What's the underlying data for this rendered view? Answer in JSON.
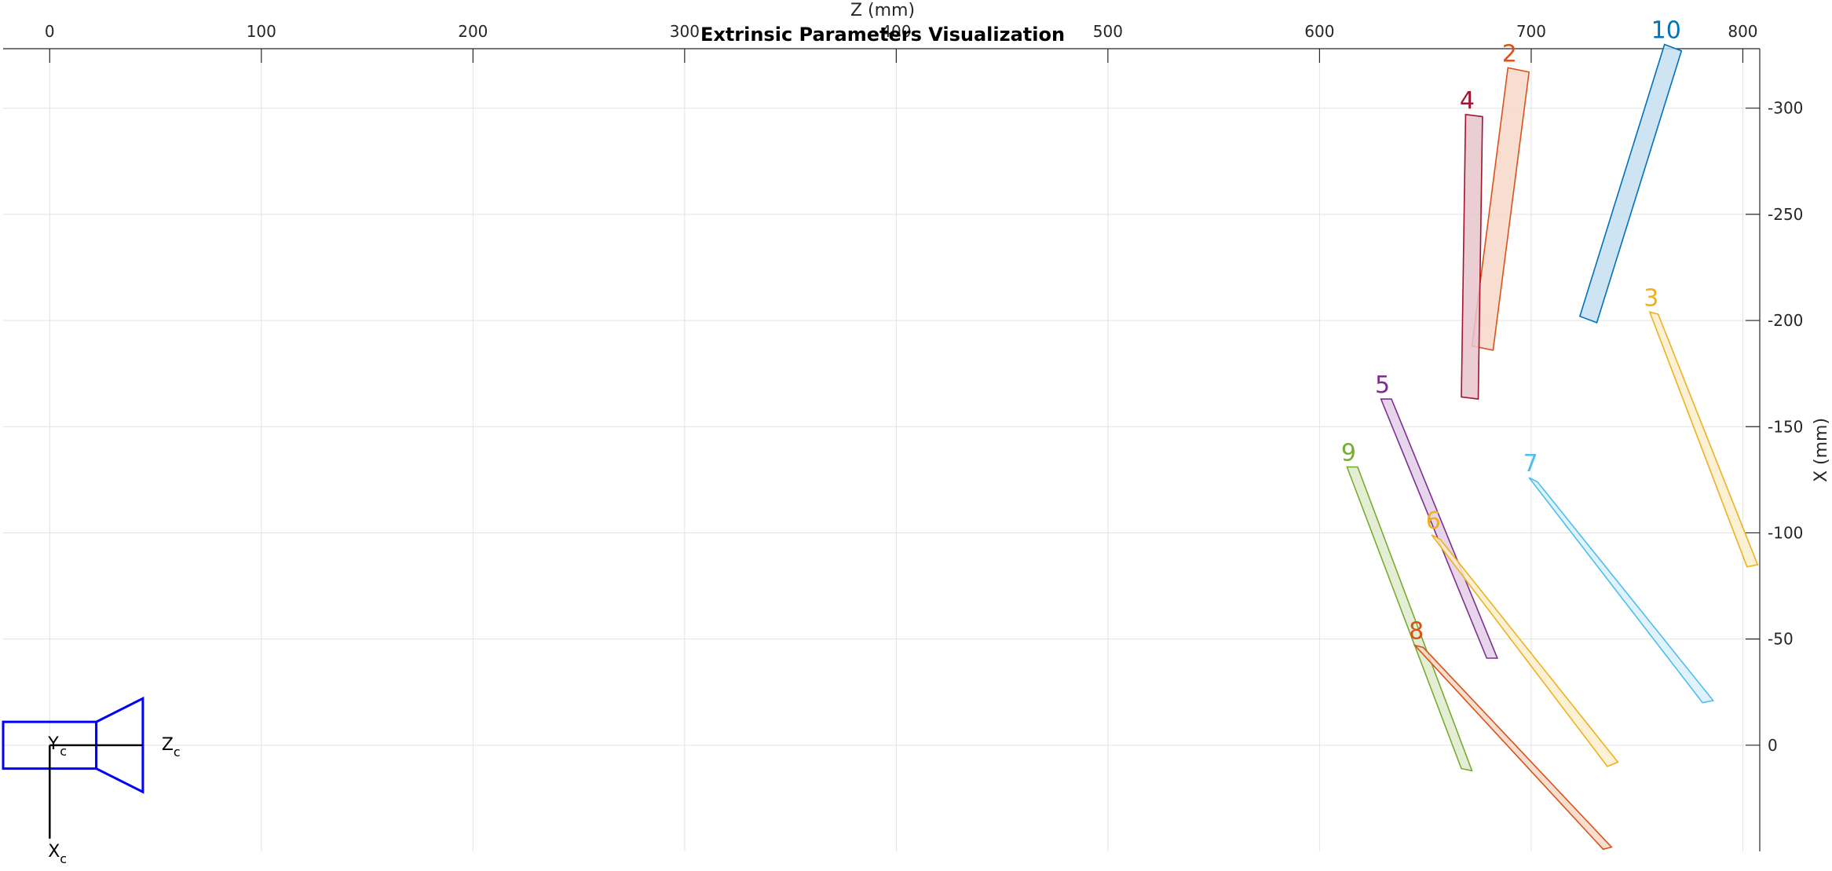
{
  "chart_data": {
    "type": "line",
    "title": "Extrinsic Parameters Visualization",
    "xlabel": "Z (mm)",
    "ylabel": "X (mm)",
    "xlim": [
      -22,
      808
    ],
    "ylim": [
      50,
      -328
    ],
    "x_ticks": [
      "0",
      "100",
      "200",
      "300",
      "400",
      "500",
      "600",
      "700",
      "800"
    ],
    "y_ticks": [
      "-300",
      "-250",
      "-200",
      "-150",
      "-100",
      "-50",
      "0"
    ],
    "x_axis_location": "top",
    "y_axis_location": "right",
    "y_direction": "reversed",
    "grid": true,
    "camera": {
      "color": "#0000ff",
      "z_label": "Z",
      "z_sub": "c",
      "y_label": "Y",
      "y_sub": "c",
      "x_label": "X",
      "x_sub": "c",
      "body": [
        [
          -22,
          -11
        ],
        [
          22,
          -11
        ],
        [
          22,
          11
        ],
        [
          -22,
          11
        ]
      ],
      "lens": [
        [
          22,
          -11
        ],
        [
          44,
          -22
        ],
        [
          44,
          22
        ],
        [
          22,
          11
        ]
      ],
      "z_axis": [
        [
          0,
          0
        ],
        [
          44,
          0
        ]
      ],
      "x_axis": [
        [
          0,
          0
        ],
        [
          0,
          44
        ]
      ]
    },
    "series": [
      {
        "name": "2",
        "color": "#d95319",
        "fill": "#f6d8c8",
        "corners": [
          [
            689,
            -319
          ],
          [
            699,
            -317
          ],
          [
            682,
            -186
          ],
          [
            672,
            -188
          ]
        ]
      },
      {
        "name": "4",
        "color": "#a2142f",
        "fill": "#e8c4cc",
        "corners": [
          [
            669,
            -297
          ],
          [
            677,
            -296
          ],
          [
            675,
            -163
          ],
          [
            667,
            -164
          ]
        ]
      },
      {
        "name": "10",
        "color": "#0072bd",
        "fill": "#c6dff0",
        "corners": [
          [
            763,
            -330
          ],
          [
            771,
            -327
          ],
          [
            731,
            -199
          ],
          [
            723,
            -202
          ]
        ]
      },
      {
        "name": "3",
        "color": "#edb120",
        "fill": "#fbeecd",
        "corners": [
          [
            756,
            -204
          ],
          [
            760,
            -203
          ],
          [
            807,
            -85
          ],
          [
            802,
            -84
          ]
        ]
      },
      {
        "name": "5",
        "color": "#7e2f8e",
        "fill": "#e3cfe7",
        "corners": [
          [
            629,
            -163
          ],
          [
            634,
            -163
          ],
          [
            684,
            -41
          ],
          [
            679,
            -41
          ]
        ]
      },
      {
        "name": "9",
        "color": "#77ac30",
        "fill": "#deebcd",
        "corners": [
          [
            613,
            -131
          ],
          [
            618,
            -131
          ],
          [
            672,
            12
          ],
          [
            667,
            11
          ]
        ]
      },
      {
        "name": "6",
        "color": "#edb120",
        "fill": "#fbeecd",
        "corners": [
          [
            653,
            -99
          ],
          [
            657,
            -97
          ],
          [
            741,
            8
          ],
          [
            736,
            10
          ]
        ]
      },
      {
        "name": "7",
        "color": "#4dbeee",
        "fill": "#dbf1fb",
        "corners": [
          [
            699,
            -126
          ],
          [
            703,
            -124
          ],
          [
            786,
            -21
          ],
          [
            781,
            -20
          ]
        ]
      },
      {
        "name": "8",
        "color": "#d95319",
        "fill": "#f6d8c8",
        "corners": [
          [
            645,
            -47
          ],
          [
            649,
            -46
          ],
          [
            738,
            48
          ],
          [
            734,
            49
          ]
        ]
      }
    ]
  }
}
